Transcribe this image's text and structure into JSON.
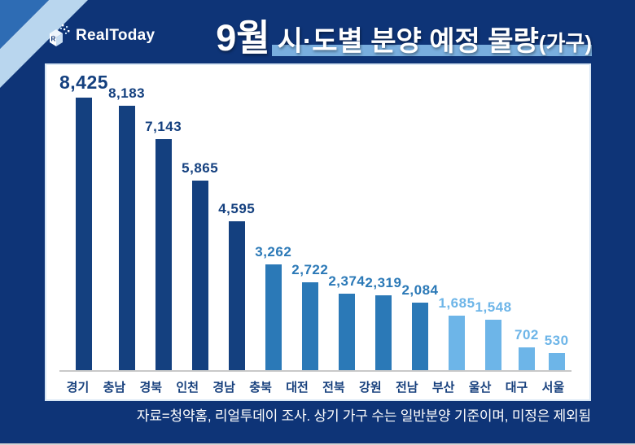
{
  "header": {
    "logo_text": "RealToday",
    "title_month": "9월",
    "title_main": "시·도별 분양 예정 물량",
    "title_unit": "(가구)"
  },
  "footer": {
    "source_note": "자료=청약홈, 리얼투데이 조사. 상기 가구 수는 일반분양 기준이며, 미정은 제외됨"
  },
  "chart_data": {
    "type": "bar",
    "title": "9월 시·도별 분양 예정 물량(가구)",
    "xlabel": "",
    "ylabel": "",
    "grid": false,
    "legend": "none",
    "ylim": [
      0,
      8425
    ],
    "categories": [
      "경기",
      "충남",
      "경북",
      "인천",
      "경남",
      "충북",
      "대전",
      "전북",
      "강원",
      "전남",
      "부산",
      "울산",
      "대구",
      "서울"
    ],
    "values": [
      8425,
      8183,
      7143,
      5865,
      4595,
      3262,
      2722,
      2374,
      2319,
      2084,
      1685,
      1548,
      702,
      530
    ],
    "value_labels": [
      "8,425",
      "8,183",
      "7,143",
      "5,865",
      "4,595",
      "3,262",
      "2,722",
      "2,374",
      "2,319",
      "2,084",
      "1,685",
      "1,548",
      "702",
      "530"
    ],
    "bar_color_groups": [
      "dark",
      "dark",
      "dark",
      "dark",
      "dark",
      "medium",
      "medium",
      "medium",
      "medium",
      "medium",
      "light",
      "light",
      "light",
      "light"
    ],
    "palette": {
      "dark": "#14407f",
      "medium": "#2b79b7",
      "light": "#6db5e8"
    },
    "colors_meta": {
      "background": "#0e3477",
      "corner_triangle": "#2e6cb4",
      "corner_stripe": "#b9d6ee",
      "title_underline": "#79aede",
      "axis_line": "#c9c9c9",
      "x_label_color": "#17407d"
    }
  }
}
